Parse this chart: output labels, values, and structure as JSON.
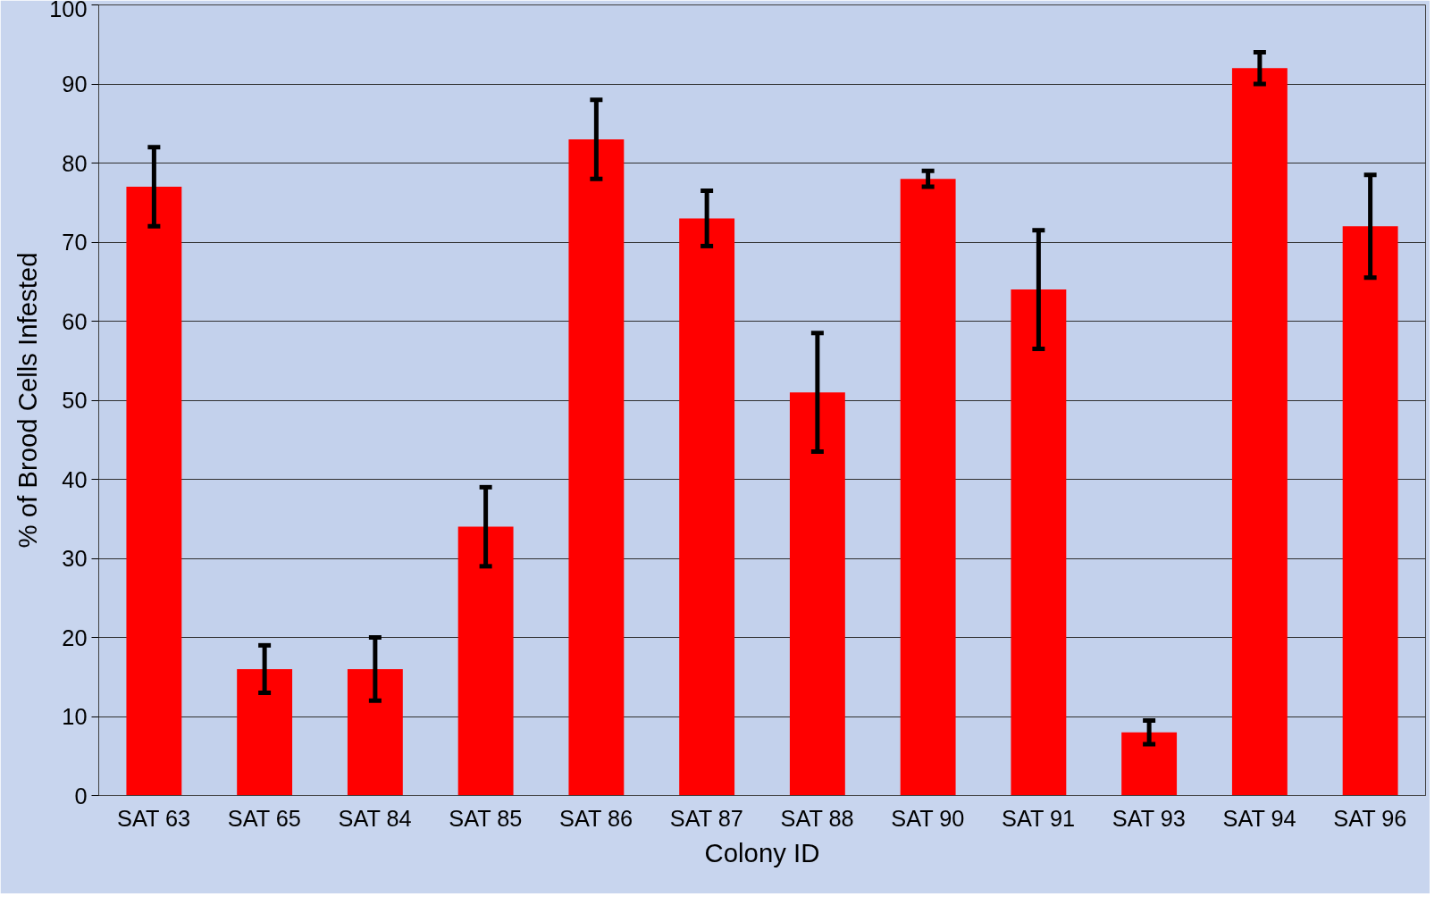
{
  "chart_data": {
    "type": "bar",
    "xlabel": "Colony ID",
    "ylabel": "% of Brood Cells Infested",
    "categories": [
      "SAT 63",
      "SAT 65",
      "SAT 84",
      "SAT 85",
      "SAT 86",
      "SAT 87",
      "SAT 88",
      "SAT 90",
      "SAT 91",
      "SAT 93",
      "SAT 94",
      "SAT 96"
    ],
    "values": [
      77,
      16,
      16,
      34,
      83,
      73,
      51,
      78,
      64,
      8,
      92,
      72
    ],
    "errors": [
      5,
      3,
      4,
      5,
      5,
      3.5,
      7.5,
      1,
      7.5,
      1.5,
      2,
      6.5
    ],
    "color": "#ff0000",
    "ylim": [
      0,
      100
    ],
    "yticks": [
      0,
      10,
      20,
      30,
      40,
      50,
      60,
      70,
      80,
      90,
      100
    ],
    "grid": "y"
  }
}
